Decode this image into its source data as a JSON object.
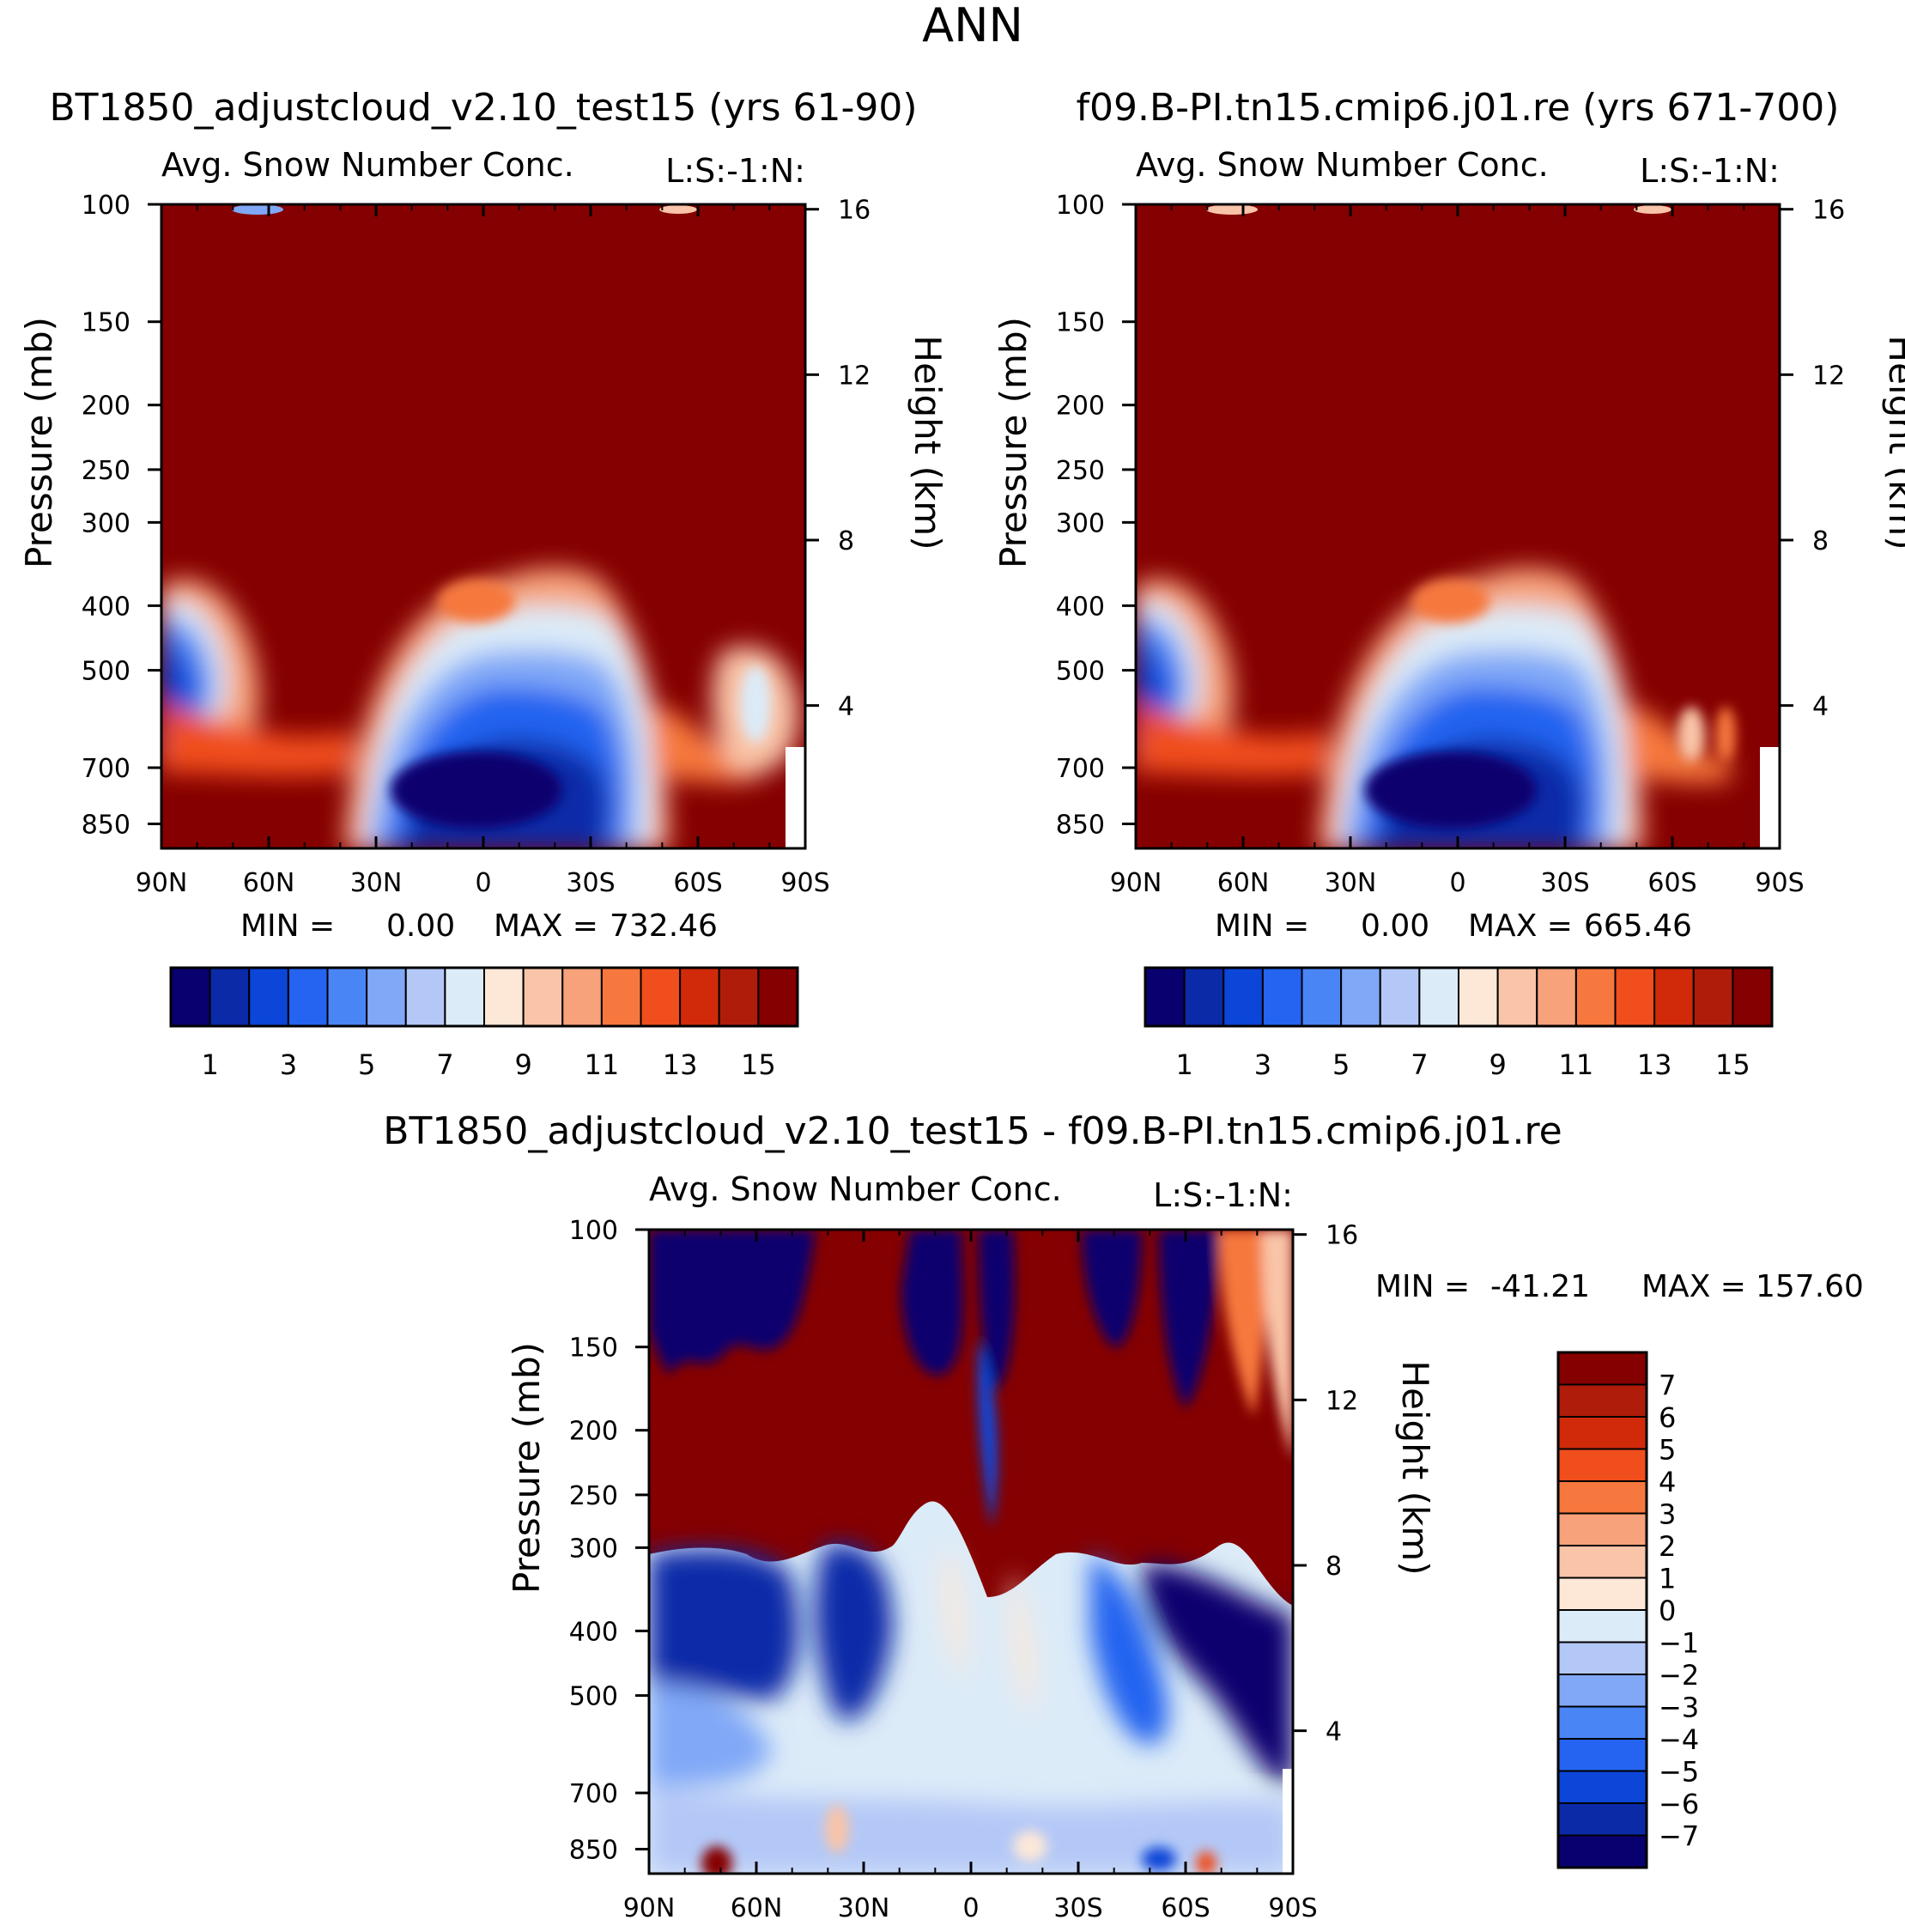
{
  "figure_title": "ANN",
  "colors": {
    "seq": [
      "#08006e",
      "#0a2aa8",
      "#0c46d8",
      "#2464f0",
      "#4a85f5",
      "#80a8f7",
      "#b4c8f7",
      "#dcebf8",
      "#fde8d8",
      "#f9c4a8",
      "#f7a27a",
      "#f6783e",
      "#f04e1c",
      "#d02a0a",
      "#b01c0a",
      "#850000"
    ],
    "div": [
      "#08006e",
      "#0a2aa8",
      "#0c46d8",
      "#2464f0",
      "#4a85f5",
      "#80a8f7",
      "#b4c8f7",
      "#dcebf8",
      "#fde8d8",
      "#f9c4a8",
      "#f7a27a",
      "#f6783e",
      "#f04e1c",
      "#d02a0a",
      "#b01c0a",
      "#850000"
    ]
  },
  "chart_data": [
    {
      "type": "heatmap",
      "title": "BT1850_adjustcloud_v2.10_test15 (yrs 61-90)",
      "subtitle": "Avg. Snow Number Conc.",
      "units_label": "L:S:-1:N:",
      "ylabel": "Pressure (mb)",
      "ylabel_right": "Height (km)",
      "x_ticks": [
        "90N",
        "60N",
        "30N",
        "0",
        "30S",
        "60S",
        "90S"
      ],
      "y_ticks": [
        "100",
        "150",
        "200",
        "250",
        "300",
        "400",
        "500",
        "700",
        "850"
      ],
      "y_ticks_right": [
        "16",
        "12",
        "8",
        "4"
      ],
      "min_label": "MIN =",
      "min_value": "0.00",
      "max_label": "MAX =",
      "max_value": "732.46",
      "min": 0.0,
      "max": 732.46,
      "colorbar_labels": [
        "1",
        "3",
        "5",
        "7",
        "9",
        "11",
        "13",
        "15"
      ]
    },
    {
      "type": "heatmap",
      "title": "f09.B-PI.tn15.cmip6.j01.re (yrs 671-700)",
      "subtitle": "Avg. Snow Number Conc.",
      "units_label": "L:S:-1:N:",
      "ylabel": "Pressure (mb)",
      "ylabel_right": "Height (km)",
      "x_ticks": [
        "90N",
        "60N",
        "30N",
        "0",
        "30S",
        "60S",
        "90S"
      ],
      "y_ticks": [
        "100",
        "150",
        "200",
        "250",
        "300",
        "400",
        "500",
        "700",
        "850"
      ],
      "y_ticks_right": [
        "16",
        "12",
        "8",
        "4"
      ],
      "min_label": "MIN =",
      "min_value": "0.00",
      "max_label": "MAX =",
      "max_value": "665.46",
      "min": 0.0,
      "max": 665.46,
      "colorbar_labels": [
        "1",
        "3",
        "5",
        "7",
        "9",
        "11",
        "13",
        "15"
      ]
    },
    {
      "type": "heatmap",
      "title": "BT1850_adjustcloud_v2.10_test15 - f09.B-PI.tn15.cmip6.j01.re",
      "subtitle": "Avg. Snow Number Conc.",
      "units_label": "L:S:-1:N:",
      "ylabel": "Pressure (mb)",
      "ylabel_right": "Height (km)",
      "x_ticks": [
        "90N",
        "60N",
        "30N",
        "0",
        "30S",
        "60S",
        "90S"
      ],
      "y_ticks": [
        "100",
        "150",
        "200",
        "250",
        "300",
        "400",
        "500",
        "700",
        "850"
      ],
      "y_ticks_right": [
        "16",
        "12",
        "8",
        "4"
      ],
      "min_label": "MIN =",
      "min_value": "-41.21",
      "max_label": "MAX =",
      "max_value": "157.60",
      "min": -41.21,
      "max": 157.6,
      "colorbar_labels": [
        "7",
        "6",
        "5",
        "4",
        "3",
        "2",
        "1",
        "0",
        "-1",
        "-2",
        "-3",
        "-4",
        "-5",
        "-6",
        "-7"
      ]
    }
  ]
}
